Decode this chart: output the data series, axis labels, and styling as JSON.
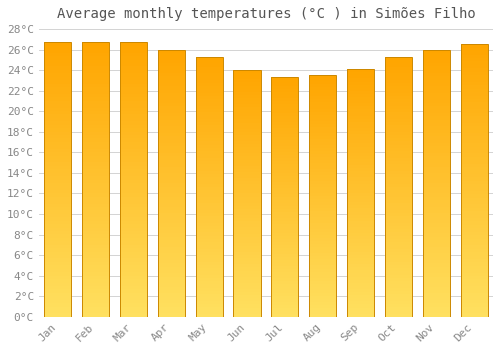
{
  "months": [
    "Jan",
    "Feb",
    "Mar",
    "Apr",
    "May",
    "Jun",
    "Jul",
    "Aug",
    "Sep",
    "Oct",
    "Nov",
    "Dec"
  ],
  "values": [
    26.7,
    26.7,
    26.7,
    26.0,
    25.3,
    24.0,
    23.3,
    23.5,
    24.1,
    25.3,
    26.0,
    26.5
  ],
  "bar_color_bottom": "#FFE060",
  "bar_color_top": "#FFA500",
  "bar_border_color": "#CC8800",
  "title": "Average monthly temperatures (°C ) in Simões Filho",
  "ylim": [
    0,
    28
  ],
  "ytick_step": 2,
  "background_color": "#ffffff",
  "grid_color": "#cccccc",
  "title_fontsize": 10,
  "tick_fontsize": 8,
  "tick_color": "#888888",
  "n_gradient_segments": 80
}
